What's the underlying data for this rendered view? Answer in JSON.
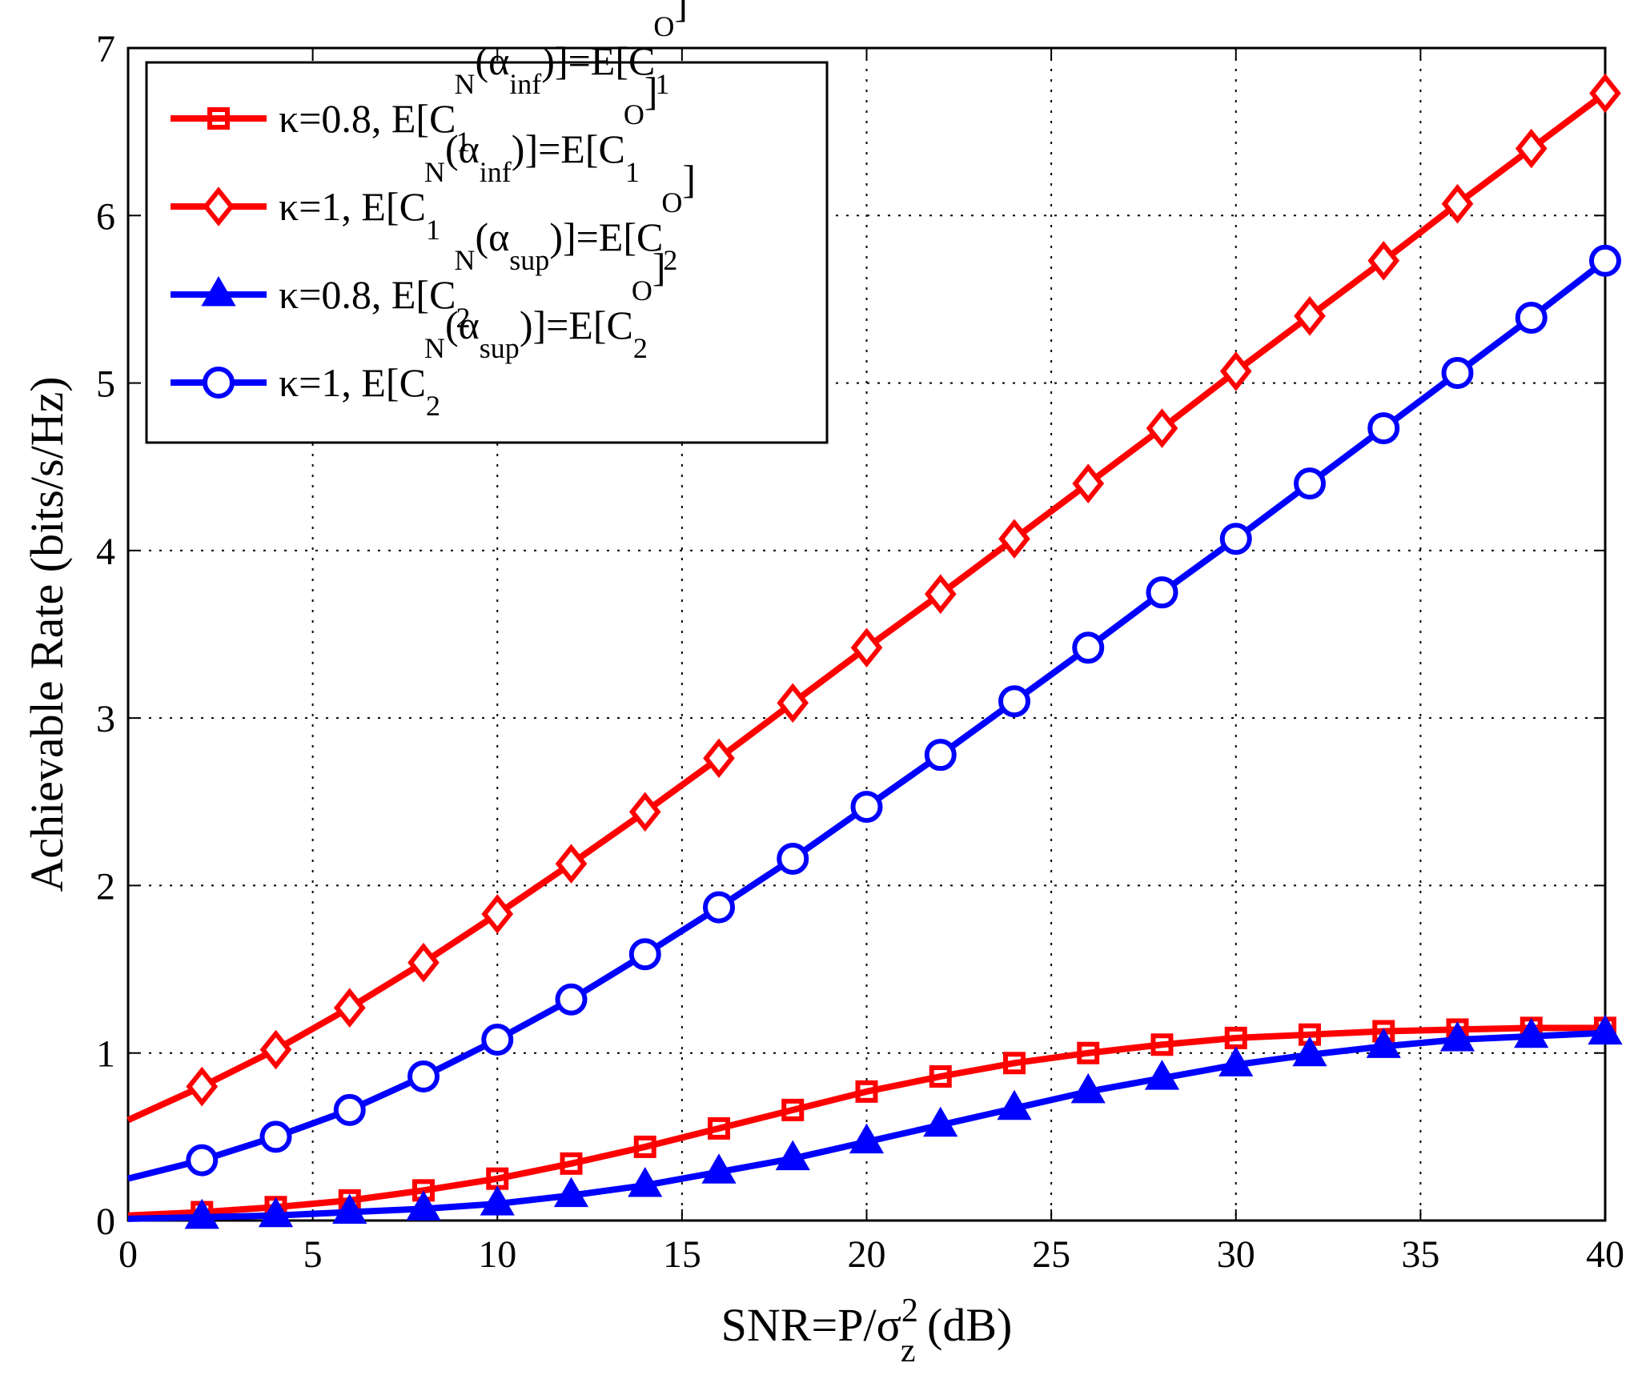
{
  "chart_data": {
    "type": "line",
    "xlabel": {
      "main": "SNR=P/σ",
      "sub": "z",
      "sup": "2",
      "suffix": " (dB)"
    },
    "ylabel": "Achievable Rate (bits/s/Hz)",
    "xlim": [
      0,
      40
    ],
    "ylim": [
      0,
      7
    ],
    "xticks": [
      0,
      5,
      10,
      15,
      20,
      25,
      30,
      35,
      40
    ],
    "yticks": [
      0,
      1,
      2,
      3,
      4,
      5,
      6,
      7
    ],
    "grid": true,
    "legend_position": "top-left",
    "series": [
      {
        "name": "κ=0.8, E[C_1^N(α_inf)]=E[C_1^O]",
        "legend": [
          {
            "t": "κ=0.8, E[C"
          },
          {
            "t": "1",
            "s": "sub"
          },
          {
            "t": "N",
            "s": "sup"
          },
          {
            "t": "(α"
          },
          {
            "t": "inf",
            "s": "sub"
          },
          {
            "t": ")]=E[C"
          },
          {
            "t": "1",
            "s": "sub"
          },
          {
            "t": "O",
            "s": "sup"
          },
          {
            "t": "]"
          }
        ],
        "color": "#ff0000",
        "marker": "square",
        "x": [
          0,
          2,
          4,
          6,
          8,
          10,
          12,
          14,
          16,
          18,
          20,
          22,
          24,
          26,
          28,
          30,
          32,
          34,
          36,
          38,
          40
        ],
        "y": [
          0.03,
          0.05,
          0.08,
          0.12,
          0.18,
          0.25,
          0.34,
          0.44,
          0.55,
          0.66,
          0.77,
          0.86,
          0.94,
          1.0,
          1.05,
          1.09,
          1.11,
          1.13,
          1.14,
          1.15,
          1.15
        ]
      },
      {
        "name": "κ=1, E[C_1^N(α_inf)]=E[C_1^O]",
        "legend": [
          {
            "t": "κ=1, E[C"
          },
          {
            "t": "1",
            "s": "sub"
          },
          {
            "t": "N",
            "s": "sup"
          },
          {
            "t": "(α"
          },
          {
            "t": "inf",
            "s": "sub"
          },
          {
            "t": ")]=E[C"
          },
          {
            "t": "1",
            "s": "sub"
          },
          {
            "t": "O",
            "s": "sup"
          },
          {
            "t": "]"
          }
        ],
        "color": "#ff0000",
        "marker": "diamond",
        "x": [
          0,
          2,
          4,
          6,
          8,
          10,
          12,
          14,
          16,
          18,
          20,
          22,
          24,
          26,
          28,
          30,
          32,
          34,
          36,
          38,
          40
        ],
        "y": [
          0.6,
          0.8,
          1.02,
          1.27,
          1.54,
          1.83,
          2.13,
          2.44,
          2.76,
          3.09,
          3.42,
          3.74,
          4.07,
          4.4,
          4.73,
          5.07,
          5.4,
          5.73,
          6.07,
          6.4,
          6.73
        ]
      },
      {
        "name": "κ=0.8, E[C_2^N(α_sup)]=E[C_2^O]",
        "legend": [
          {
            "t": "κ=0.8, E[C"
          },
          {
            "t": "2",
            "s": "sub"
          },
          {
            "t": "N",
            "s": "sup"
          },
          {
            "t": "(α"
          },
          {
            "t": "sup",
            "s": "sub"
          },
          {
            "t": ")]=E[C"
          },
          {
            "t": "2",
            "s": "sub"
          },
          {
            "t": "O",
            "s": "sup"
          },
          {
            "t": "]"
          }
        ],
        "color": "#0000ff",
        "marker": "triangle",
        "x": [
          0,
          2,
          4,
          6,
          8,
          10,
          12,
          14,
          16,
          18,
          20,
          22,
          24,
          26,
          28,
          30,
          32,
          34,
          36,
          38,
          40
        ],
        "y": [
          0.01,
          0.02,
          0.03,
          0.05,
          0.07,
          0.1,
          0.15,
          0.21,
          0.29,
          0.37,
          0.47,
          0.57,
          0.67,
          0.77,
          0.85,
          0.93,
          0.99,
          1.04,
          1.08,
          1.1,
          1.12
        ]
      },
      {
        "name": "κ=1, E[C_2^N(α_sup)]=E[C_2^O]",
        "legend": [
          {
            "t": "κ=1, E[C"
          },
          {
            "t": "2",
            "s": "sub"
          },
          {
            "t": "N",
            "s": "sup"
          },
          {
            "t": "(α"
          },
          {
            "t": "sup",
            "s": "sub"
          },
          {
            "t": ")]=E[C"
          },
          {
            "t": "2",
            "s": "sub"
          },
          {
            "t": "O",
            "s": "sup"
          },
          {
            "t": "]"
          }
        ],
        "color": "#0000ff",
        "marker": "circle",
        "x": [
          0,
          2,
          4,
          6,
          8,
          10,
          12,
          14,
          16,
          18,
          20,
          22,
          24,
          26,
          28,
          30,
          32,
          34,
          36,
          38,
          40
        ],
        "y": [
          0.25,
          0.36,
          0.5,
          0.66,
          0.86,
          1.08,
          1.32,
          1.59,
          1.87,
          2.16,
          2.47,
          2.78,
          3.1,
          3.42,
          3.75,
          4.07,
          4.4,
          4.73,
          5.06,
          5.39,
          5.73
        ]
      }
    ]
  }
}
